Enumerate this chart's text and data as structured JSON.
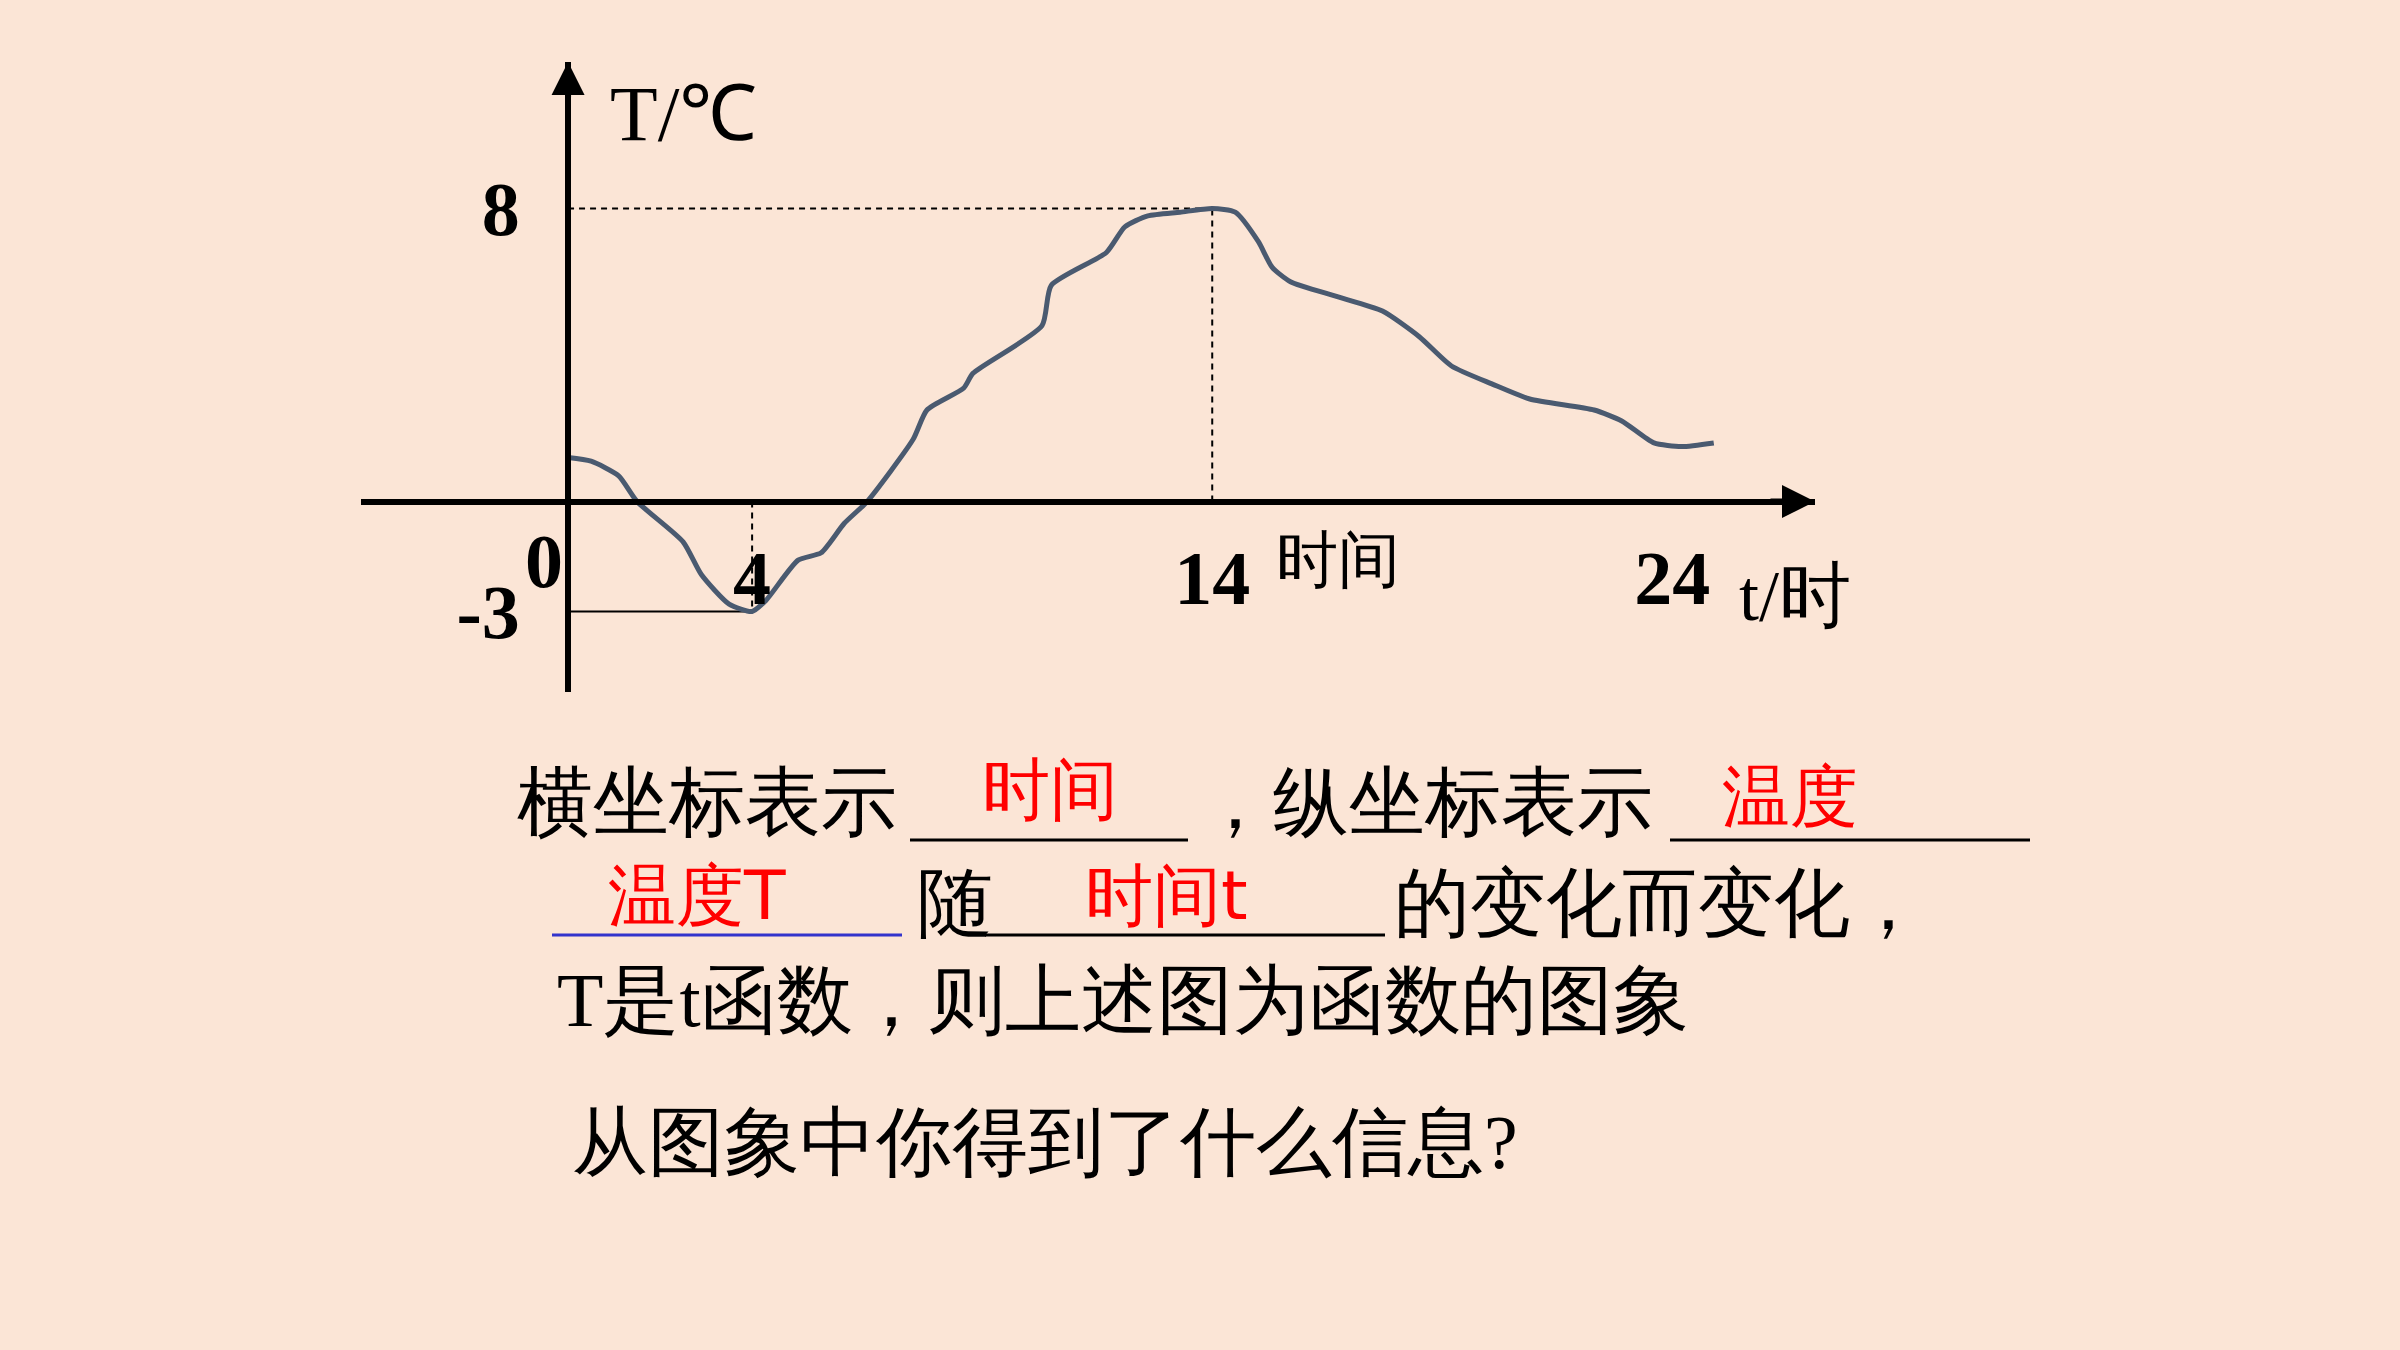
{
  "chart_data": {
    "type": "line",
    "xlabel": "t/时",
    "ylabel": "T/℃",
    "x": [
      0,
      0.5,
      1.1,
      1.5,
      2.5,
      2.9,
      3.5,
      4,
      4.3,
      5,
      5.5,
      6,
      6.5,
      7.5,
      7.8,
      8.6,
      8.8,
      10.3,
      10.5,
      11.7,
      12.1,
      12.6,
      13.3,
      14,
      14.5,
      15,
      15.3,
      15.7,
      16.7,
      17.7,
      18.5,
      19.2,
      20.1,
      20.9,
      22.3,
      22.9,
      23.6,
      24.2,
      24.9
    ],
    "series": [
      {
        "color": "#4a5a70",
        "values": [
          1.2,
          1.1,
          0.7,
          0,
          -1.1,
          -2,
          -2.8,
          -3,
          -2.7,
          -1.6,
          -1.4,
          -0.6,
          0,
          1.7,
          2.5,
          3.1,
          3.5,
          4.8,
          5.9,
          6.8,
          7.5,
          7.8,
          7.9,
          8,
          7.9,
          7.1,
          6.4,
          6,
          5.6,
          5.2,
          4.5,
          3.7,
          3.2,
          2.8,
          2.5,
          2.2,
          1.6,
          1.5,
          1.6
        ]
      }
    ],
    "xlim": [
      -4.5,
      27.1
    ],
    "ylim": [
      -5.2,
      12
    ],
    "xticks": [
      0,
      4,
      14,
      24
    ],
    "yticks": [
      -3,
      8
    ],
    "ref_lines": [
      {
        "axis": "y",
        "value": 8,
        "line_style": "dashed"
      },
      {
        "axis": "x",
        "value": 14,
        "line_style": "dashed"
      },
      {
        "axis": "x",
        "value": 4,
        "line_style": "dashed"
      },
      {
        "axis": "y",
        "value": -3,
        "line_style": "solid"
      }
    ],
    "annotations": [
      "时间",
      "横坐标表示",
      "时间",
      "，纵坐标表示",
      "温度",
      "温度T",
      "随",
      "时间t",
      "的变化而变化，",
      "T是t函数，则上述图为函数的图象",
      "从图象中你得到了什么信息?"
    ]
  }
}
